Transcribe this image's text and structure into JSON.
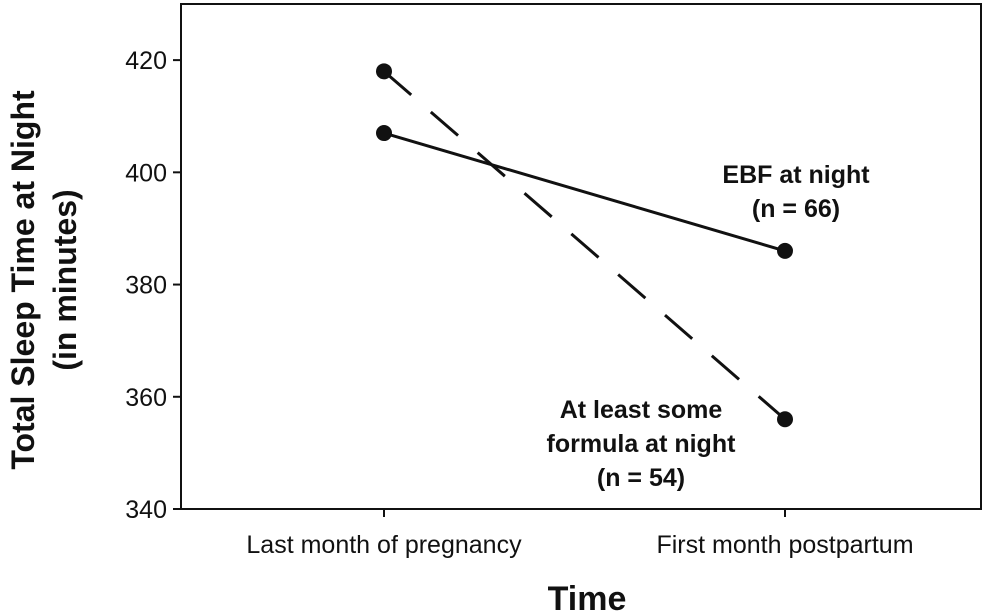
{
  "chart_data": {
    "type": "line",
    "title": "",
    "xlabel": "Time",
    "ylabel_line1": "Total Sleep Time at Night",
    "ylabel_line2": "(in minutes)",
    "categories": [
      "Last month of pregnancy",
      "First month postpartum"
    ],
    "ylim": [
      340,
      430
    ],
    "yticks": [
      340,
      360,
      380,
      400,
      420
    ],
    "grid": false,
    "series": [
      {
        "name_lines": [
          "EBF at night",
          "(n = 66)"
        ],
        "values": [
          407,
          386
        ],
        "line_style": "solid",
        "color": "#111111"
      },
      {
        "name_lines": [
          "At least some",
          "formula at night",
          "(n = 54)"
        ],
        "values": [
          418,
          356
        ],
        "line_style": "dashed",
        "color": "#111111"
      }
    ]
  }
}
